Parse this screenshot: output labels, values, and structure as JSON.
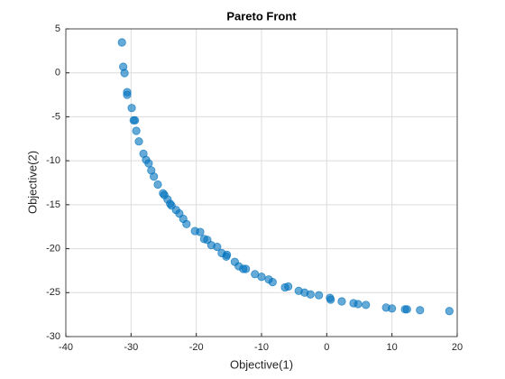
{
  "chart_data": {
    "type": "scatter",
    "title": "Pareto Front",
    "xlabel": "Objective(1)",
    "ylabel": "Objective(2)",
    "x": [
      -31.4,
      -31.2,
      -31.0,
      -30.6,
      -30.6,
      -29.9,
      -29.6,
      -29.4,
      -29.2,
      -28.8,
      -28.1,
      -27.7,
      -27.3,
      -26.9,
      -26.5,
      -25.9,
      -25.1,
      -24.9,
      -24.4,
      -24.0,
      -23.8,
      -23.1,
      -22.6,
      -22.0,
      -21.5,
      -20.2,
      -19.4,
      -18.8,
      -18.3,
      -17.7,
      -16.8,
      -16.1,
      -15.4,
      -15.3,
      -14.1,
      -13.5,
      -12.8,
      -12.4,
      -11.0,
      -10.0,
      -8.9,
      -8.3,
      -6.4,
      -5.9,
      -4.3,
      -3.4,
      -2.5,
      -1.2,
      0.5,
      0.6,
      2.3,
      4.1,
      4.8,
      6.0,
      9.1,
      10.0,
      12.0,
      12.3,
      14.3,
      18.8
    ],
    "values": [
      3.46,
      0.69,
      -0.03,
      -2.2,
      -2.5,
      -4.0,
      -5.4,
      -5.4,
      -6.6,
      -7.8,
      -9.2,
      -9.9,
      -10.3,
      -11.1,
      -11.8,
      -12.7,
      -13.7,
      -13.9,
      -14.4,
      -14.9,
      -15.1,
      -15.6,
      -16.0,
      -16.6,
      -17.2,
      -18.0,
      -18.1,
      -18.9,
      -19.0,
      -19.6,
      -19.8,
      -20.5,
      -20.9,
      -20.7,
      -21.5,
      -22.0,
      -22.3,
      -22.3,
      -22.9,
      -23.2,
      -23.5,
      -23.8,
      -24.4,
      -24.3,
      -24.8,
      -25.0,
      -25.2,
      -25.3,
      -25.6,
      -25.8,
      -26.0,
      -26.2,
      -26.3,
      -26.4,
      -26.7,
      -26.8,
      -26.9,
      -26.9,
      -27.0,
      -27.1
    ],
    "color": "#0072bd",
    "xlim": [
      -40,
      20
    ],
    "xticks": [
      -40,
      -30,
      -20,
      -10,
      0,
      10,
      20
    ],
    "ylim": [
      -30,
      5
    ],
    "yticks": [
      -30,
      -25,
      -20,
      -15,
      -10,
      -5,
      0,
      5
    ],
    "grid": true
  }
}
